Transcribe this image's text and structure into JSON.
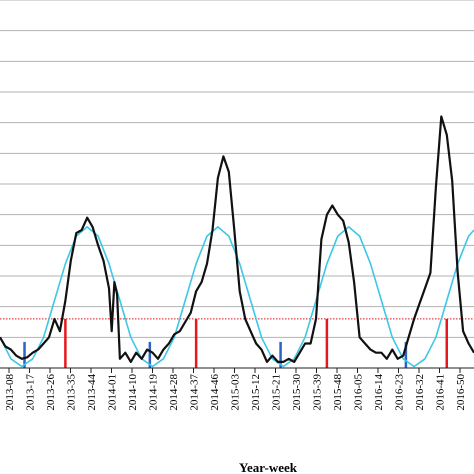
{
  "chart_data": {
    "type": "line",
    "xlabel": "Year-week",
    "ylabel": "",
    "title": "",
    "grid": "horizontal",
    "ylim": [
      0,
      12
    ],
    "x_tick_labels": [
      "2013-08",
      "2013-17",
      "2013-26",
      "2013-35",
      "2013-44",
      "2014-01",
      "2014-10",
      "2014-19",
      "2014-28",
      "2014-37",
      "2014-46",
      "2015-03",
      "2015-12",
      "2015-21",
      "2015-30",
      "2015-39",
      "2015-48",
      "2016-05",
      "2016-14",
      "2016-23",
      "2016-32",
      "2016-41",
      "2016-50"
    ],
    "series": [
      {
        "role": "observed",
        "color": "#111111",
        "points": [
          [
            0,
            1.0
          ],
          [
            2,
            0.7
          ],
          [
            4,
            0.6
          ],
          [
            6,
            0.4
          ],
          [
            8,
            0.3
          ],
          [
            10,
            0.35
          ],
          [
            12,
            0.5
          ],
          [
            14,
            0.6
          ],
          [
            16,
            0.8
          ],
          [
            18,
            1.0
          ],
          [
            20,
            1.6
          ],
          [
            22,
            1.2
          ],
          [
            24,
            2.2
          ],
          [
            26,
            3.5
          ],
          [
            28,
            4.4
          ],
          [
            30,
            4.5
          ],
          [
            32,
            4.9
          ],
          [
            34,
            4.6
          ],
          [
            36,
            4.0
          ],
          [
            38,
            3.5
          ],
          [
            40,
            2.6
          ],
          [
            41,
            1.2
          ],
          [
            42,
            2.8
          ],
          [
            43,
            2.4
          ],
          [
            44,
            0.3
          ],
          [
            46,
            0.5
          ],
          [
            48,
            0.2
          ],
          [
            50,
            0.5
          ],
          [
            52,
            0.3
          ],
          [
            54,
            0.6
          ],
          [
            56,
            0.5
          ],
          [
            58,
            0.3
          ],
          [
            60,
            0.6
          ],
          [
            62,
            0.8
          ],
          [
            64,
            1.1
          ],
          [
            66,
            1.2
          ],
          [
            68,
            1.5
          ],
          [
            70,
            1.8
          ],
          [
            72,
            2.5
          ],
          [
            74,
            2.8
          ],
          [
            76,
            3.4
          ],
          [
            78,
            4.5
          ],
          [
            80,
            6.2
          ],
          [
            82,
            6.9
          ],
          [
            84,
            6.4
          ],
          [
            86,
            4.5
          ],
          [
            88,
            2.5
          ],
          [
            90,
            1.6
          ],
          [
            92,
            1.2
          ],
          [
            94,
            0.8
          ],
          [
            96,
            0.6
          ],
          [
            98,
            0.2
          ],
          [
            100,
            0.4
          ],
          [
            102,
            0.2
          ],
          [
            104,
            0.2
          ],
          [
            106,
            0.3
          ],
          [
            108,
            0.2
          ],
          [
            110,
            0.5
          ],
          [
            112,
            0.8
          ],
          [
            114,
            0.8
          ],
          [
            116,
            1.6
          ],
          [
            118,
            4.2
          ],
          [
            120,
            5.0
          ],
          [
            122,
            5.3
          ],
          [
            124,
            5.0
          ],
          [
            126,
            4.8
          ],
          [
            128,
            4.1
          ],
          [
            130,
            2.8
          ],
          [
            132,
            1.0
          ],
          [
            134,
            0.8
          ],
          [
            136,
            0.6
          ],
          [
            138,
            0.5
          ],
          [
            140,
            0.5
          ],
          [
            142,
            0.3
          ],
          [
            144,
            0.6
          ],
          [
            146,
            0.3
          ],
          [
            148,
            0.4
          ],
          [
            150,
            1.0
          ],
          [
            152,
            1.6
          ],
          [
            154,
            2.1
          ],
          [
            156,
            2.6
          ],
          [
            158,
            3.1
          ],
          [
            160,
            5.9
          ],
          [
            162,
            8.2
          ],
          [
            164,
            7.6
          ],
          [
            166,
            6.1
          ],
          [
            168,
            3.1
          ],
          [
            170,
            1.2
          ],
          [
            172,
            0.8
          ],
          [
            174,
            0.5
          ]
        ]
      },
      {
        "role": "fitted",
        "color": "#3cc7e6",
        "points": [
          [
            0,
            1.0
          ],
          [
            4,
            0.3
          ],
          [
            8,
            0.05
          ],
          [
            12,
            0.3
          ],
          [
            16,
            1.0
          ],
          [
            20,
            2.2
          ],
          [
            24,
            3.4
          ],
          [
            28,
            4.3
          ],
          [
            32,
            4.6
          ],
          [
            36,
            4.3
          ],
          [
            40,
            3.4
          ],
          [
            44,
            2.2
          ],
          [
            48,
            1.0
          ],
          [
            52,
            0.3
          ],
          [
            56,
            0.05
          ],
          [
            60,
            0.3
          ],
          [
            64,
            1.0
          ],
          [
            68,
            2.2
          ],
          [
            72,
            3.4
          ],
          [
            76,
            4.3
          ],
          [
            80,
            4.6
          ],
          [
            84,
            4.3
          ],
          [
            88,
            3.4
          ],
          [
            92,
            2.2
          ],
          [
            96,
            1.0
          ],
          [
            100,
            0.3
          ],
          [
            104,
            0.05
          ],
          [
            108,
            0.3
          ],
          [
            112,
            1.0
          ],
          [
            116,
            2.2
          ],
          [
            120,
            3.4
          ],
          [
            124,
            4.3
          ],
          [
            128,
            4.6
          ],
          [
            132,
            4.3
          ],
          [
            136,
            3.4
          ],
          [
            140,
            2.2
          ],
          [
            144,
            1.0
          ],
          [
            148,
            0.3
          ],
          [
            152,
            0.05
          ],
          [
            156,
            0.3
          ],
          [
            160,
            1.0
          ],
          [
            164,
            2.2
          ],
          [
            168,
            3.4
          ],
          [
            172,
            4.3
          ],
          [
            174,
            4.5
          ]
        ]
      }
    ],
    "threshold": {
      "value": 1.6,
      "color": "#d7141a",
      "style": "dotted"
    },
    "red_markers": [
      24,
      72,
      120,
      164
    ],
    "blue_markers": [
      9,
      55,
      103,
      149
    ],
    "red_marker_color": "#e4191f",
    "blue_marker_color": "#2a63c8"
  }
}
